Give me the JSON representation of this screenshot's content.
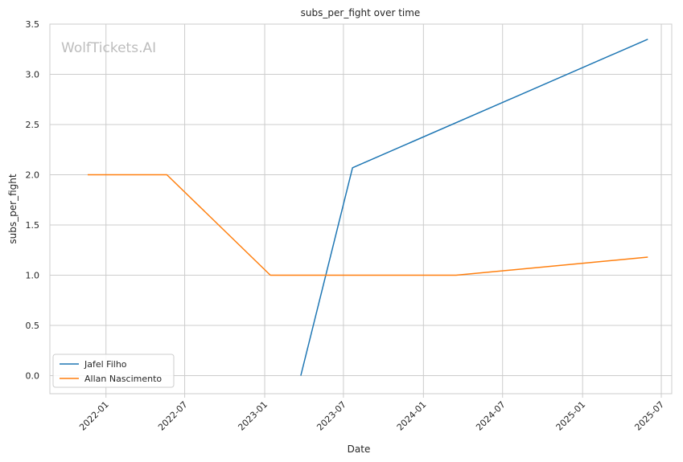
{
  "chart_data": {
    "type": "line",
    "title": "subs_per_fight over time",
    "xlabel": "Date",
    "ylabel": "subs_per_fight",
    "watermark": "WolfTickets.AI",
    "x_ticks": [
      "2022-01",
      "2022-07",
      "2023-01",
      "2023-07",
      "2024-01",
      "2024-07",
      "2025-01",
      "2025-07"
    ],
    "y_ticks": [
      "0.0",
      "0.5",
      "1.0",
      "1.5",
      "2.0",
      "2.5",
      "3.0",
      "3.5"
    ],
    "xlim": [
      "2021-08-25",
      "2025-07-25"
    ],
    "ylim": [
      -0.18,
      3.5
    ],
    "grid": true,
    "legend_position": "lower-left",
    "series": [
      {
        "name": "Jafel Filho",
        "color": "#1f77b4",
        "points": [
          {
            "x": "2023-03-25",
            "y": 0.0
          },
          {
            "x": "2023-07-22",
            "y": 2.07
          },
          {
            "x": "2025-05-31",
            "y": 3.35
          }
        ]
      },
      {
        "name": "Allan Nascimento",
        "color": "#ff7f0e",
        "points": [
          {
            "x": "2021-11-20",
            "y": 2.0
          },
          {
            "x": "2022-05-21",
            "y": 2.0
          },
          {
            "x": "2023-01-14",
            "y": 1.0
          },
          {
            "x": "2024-03-16",
            "y": 1.0
          },
          {
            "x": "2025-05-31",
            "y": 1.18
          }
        ]
      }
    ]
  }
}
